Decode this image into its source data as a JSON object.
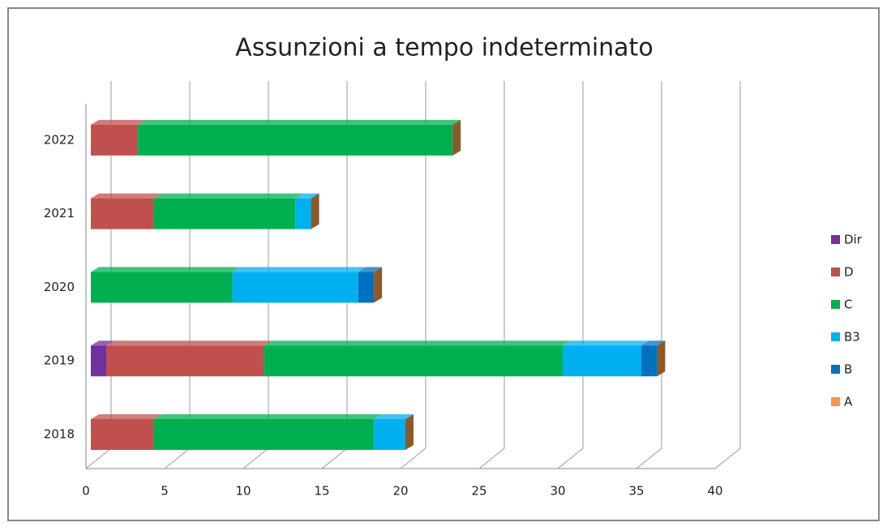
{
  "chart_data": {
    "type": "stacked-bar-horizontal",
    "title": "Assunzioni a tempo indeterminato",
    "categories": [
      "2018",
      "2019",
      "2020",
      "2021",
      "2022"
    ],
    "series": [
      {
        "name": "Dir",
        "color": "#7030a0",
        "values": [
          0,
          1,
          0,
          0,
          0
        ]
      },
      {
        "name": "D",
        "color": "#c0504d",
        "values": [
          4,
          10,
          0,
          4,
          3
        ]
      },
      {
        "name": "C",
        "color": "#00b050",
        "values": [
          14,
          19,
          9,
          9,
          20
        ]
      },
      {
        "name": "B3",
        "color": "#00b0f0",
        "values": [
          2,
          5,
          8,
          1,
          0
        ]
      },
      {
        "name": "B",
        "color": "#0070c0",
        "values": [
          0,
          1,
          1,
          0,
          0
        ]
      },
      {
        "name": "A",
        "color": "#f79646",
        "values": [
          0,
          0,
          0,
          0,
          0
        ]
      }
    ],
    "xlim": [
      0,
      40
    ],
    "xticks": [
      0,
      5,
      10,
      15,
      20,
      25,
      30,
      35,
      40
    ],
    "grid": true,
    "legend": "right"
  }
}
